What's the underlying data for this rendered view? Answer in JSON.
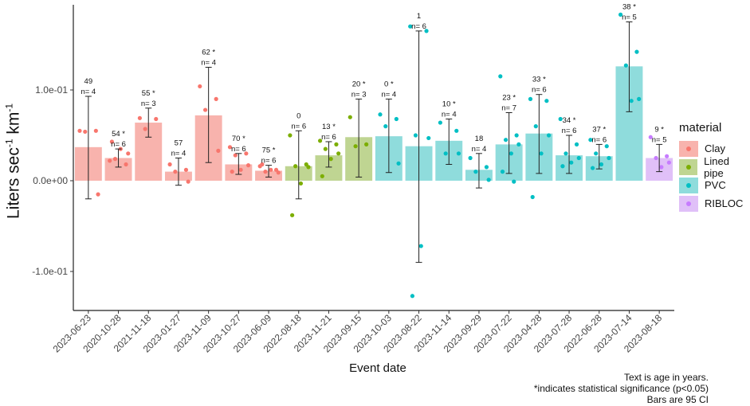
{
  "chart_data": {
    "type": "bar",
    "ylabel": "Liters sec",
    "ylabel_sup1": "-1",
    "ylabel_mid": " km",
    "ylabel_sup2": "-1",
    "xlabel": "Event date",
    "yticks": [
      {
        "value": 0.1,
        "label": "1.0e-01"
      },
      {
        "value": 0.0,
        "label": "0.0e+00"
      },
      {
        "value": -0.1,
        "label": "-1.0e-01"
      }
    ],
    "ylim": [
      -0.145,
      0.195
    ],
    "bars": [
      {
        "date": "2023-06-23",
        "material": "Clay",
        "value": 0.037,
        "ci": [
          -0.02,
          0.093
        ],
        "age": "49",
        "n": "n= 4",
        "points": [
          0.055,
          0.055,
          0.054,
          -0.015
        ]
      },
      {
        "date": "2020-10-28",
        "material": "Clay",
        "value": 0.025,
        "ci": [
          0.015,
          0.035
        ],
        "age": "54 *",
        "n": "n= 6",
        "points": [
          0.022,
          0.018,
          0.024,
          0.03,
          0.035,
          0.043
        ]
      },
      {
        "date": "2021-11-18",
        "material": "Clay",
        "value": 0.064,
        "ci": [
          0.048,
          0.08
        ],
        "age": "55 *",
        "n": "n= 3",
        "points": [
          0.069,
          0.068,
          0.057
        ]
      },
      {
        "date": "2023-01-27",
        "material": "Clay",
        "value": 0.01,
        "ci": [
          -0.005,
          0.025
        ],
        "age": "57",
        "n": "n= 4",
        "points": [
          0.018,
          0.012,
          0.01,
          -0.001
        ]
      },
      {
        "date": "2023-11-09",
        "material": "Clay",
        "value": 0.072,
        "ci": [
          0.02,
          0.125
        ],
        "age": "62 *",
        "n": "n= 4",
        "points": [
          0.104,
          0.09,
          0.078,
          0.033
        ]
      },
      {
        "date": "2023-10-27",
        "material": "Clay",
        "value": 0.018,
        "ci": [
          0.007,
          0.03
        ],
        "age": "70 *",
        "n": "n= 6",
        "points": [
          0.037,
          0.03,
          0.028,
          0.017,
          0.012,
          0.01
        ]
      },
      {
        "date": "2023-06-09",
        "material": "Clay",
        "value": 0.011,
        "ci": [
          0.004,
          0.017
        ],
        "age": "75 *",
        "n": "n= 6",
        "points": [
          0.016,
          0.012,
          0.01,
          0.009,
          0.012,
          0.018
        ]
      },
      {
        "date": "2022-08-18",
        "material": "Lined pipe",
        "value": 0.016,
        "ci": [
          -0.02,
          0.055
        ],
        "age": "0",
        "n": "n= 6",
        "points": [
          0.05,
          0.018,
          0.016,
          0.015,
          -0.003,
          -0.038
        ]
      },
      {
        "date": "2023-11-21",
        "material": "Lined pipe",
        "value": 0.028,
        "ci": [
          0.015,
          0.043
        ],
        "age": "13 *",
        "n": "n= 6",
        "points": [
          0.044,
          0.04,
          0.035,
          0.03,
          0.024,
          0.005
        ]
      },
      {
        "date": "2023-09-15",
        "material": "Lined pipe",
        "value": 0.048,
        "ci": [
          0.004,
          0.09
        ],
        "age": "20 *",
        "n": "n= 3",
        "points": [
          0.07,
          0.04,
          0.038
        ]
      },
      {
        "date": "2023-10-03",
        "material": "PVC",
        "value": 0.049,
        "ci": [
          0.009,
          0.09
        ],
        "age": "0 *",
        "n": "n= 4",
        "points": [
          0.073,
          0.068,
          0.06,
          0.019
        ]
      },
      {
        "date": "2023-08-22",
        "material": "PVC",
        "value": 0.038,
        "ci": [
          -0.09,
          0.165
        ],
        "age": "1",
        "n": "n= 6",
        "points": [
          0.17,
          0.165,
          0.05,
          0.047,
          -0.072,
          -0.127
        ]
      },
      {
        "date": "2023-11-14",
        "material": "PVC",
        "value": 0.044,
        "ci": [
          0.018,
          0.068
        ],
        "age": "10 *",
        "n": "n= 4",
        "points": [
          0.064,
          0.055,
          0.03,
          0.03
        ]
      },
      {
        "date": "2023-09-29",
        "material": "PVC",
        "value": 0.012,
        "ci": [
          -0.008,
          0.03
        ],
        "age": "18",
        "n": "n= 4",
        "points": [
          0.025,
          0.015,
          0.01,
          0.001
        ]
      },
      {
        "date": "2023-07-22",
        "material": "PVC",
        "value": 0.04,
        "ci": [
          0.008,
          0.075
        ],
        "age": "23 *",
        "n": "n= 7",
        "points": [
          0.115,
          0.05,
          0.045,
          0.04,
          0.03,
          0.01,
          -0.001
        ]
      },
      {
        "date": "2023-04-28",
        "material": "PVC",
        "value": 0.052,
        "ci": [
          0.008,
          0.095
        ],
        "age": "33 *",
        "n": "n= 6",
        "points": [
          0.09,
          0.088,
          0.06,
          0.05,
          0.03,
          -0.018
        ]
      },
      {
        "date": "2023-07-28",
        "material": "PVC",
        "value": 0.028,
        "ci": [
          0.008,
          0.05
        ],
        "age": "34 *",
        "n": "n= 6",
        "points": [
          0.068,
          0.04,
          0.03,
          0.025,
          0.02,
          0.016
        ]
      },
      {
        "date": "2022-06-28",
        "material": "PVC",
        "value": 0.027,
        "ci": [
          0.013,
          0.04
        ],
        "age": "37 *",
        "n": "n= 6",
        "points": [
          0.045,
          0.038,
          0.03,
          0.025,
          0.018,
          0.014
        ]
      },
      {
        "date": "2023-07-14",
        "material": "PVC",
        "value": 0.126,
        "ci": [
          0.076,
          0.175
        ],
        "age": "38 *",
        "n": "n= 5",
        "points": [
          0.183,
          0.142,
          0.127,
          0.09,
          0.088
        ]
      },
      {
        "date": "2023-08-18",
        "material": "RIBLOC",
        "value": 0.025,
        "ci": [
          0.01,
          0.04
        ],
        "age": "9 *",
        "n": "n= 5",
        "points": [
          0.048,
          0.027,
          0.025,
          0.02,
          0.015
        ]
      }
    ],
    "legend": {
      "title": "material",
      "entries": [
        {
          "name": "Clay",
          "bar_color": "#f8b3ad",
          "point_color": "#f8766d"
        },
        {
          "name": "Lined pipe",
          "bar_color": "#bfd592",
          "point_color": "#7cae00"
        },
        {
          "name": "PVC",
          "bar_color": "#8fdcdc",
          "point_color": "#00bfc4"
        },
        {
          "name": "RIBLOC",
          "bar_color": "#e0c0f8",
          "point_color": "#c77cff"
        }
      ]
    },
    "caption": [
      "Text is age in years.",
      "*indicates statistical significance (p<0.05)",
      "Bars are 95 CI"
    ]
  }
}
